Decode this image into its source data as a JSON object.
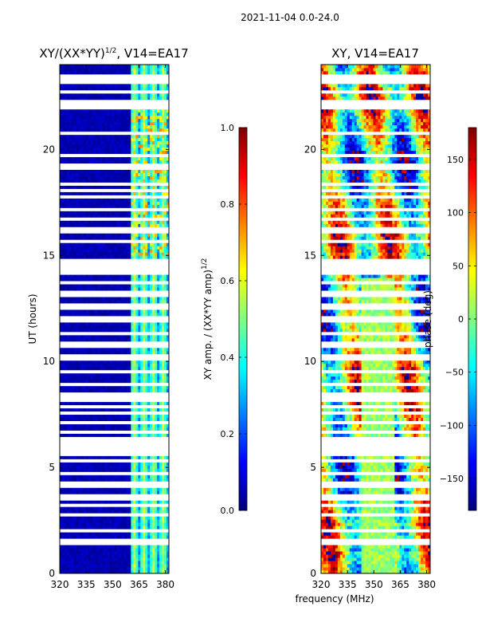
{
  "suptitle": "2021-11-04 0.0-24.0",
  "colors": {
    "jet": [
      "#00007f",
      "#0000ff",
      "#007fff",
      "#00ffff",
      "#7fff7f",
      "#ffff00",
      "#ff7f00",
      "#ff0000",
      "#7f0000"
    ],
    "gap": "#ffffff"
  },
  "chart_data": [
    {
      "type": "heatmap",
      "title": "XY/(XX*YY)",
      "title_sup": "1/2",
      "title_suffix": ", V14=EA17",
      "xlabel": "",
      "ylabel": "UT (hours)",
      "xlim": [
        320,
        382
      ],
      "ylim": [
        0,
        24
      ],
      "xticks": [
        "320",
        "335",
        "350",
        "365",
        "380"
      ],
      "xtick_values": [
        320,
        335,
        350,
        365,
        380
      ],
      "yticks": [
        "0",
        "5",
        "10",
        "15",
        "20"
      ],
      "ytick_values": [
        0,
        5,
        10,
        15,
        20
      ],
      "colorbar": {
        "label": "XY amp. / (XX*YY amp)",
        "label_sup": "1/2",
        "range": [
          0.0,
          1.0
        ],
        "ticks": [
          "0.0",
          "0.2",
          "0.4",
          "0.6",
          "0.8",
          "1.0"
        ],
        "tick_values": [
          0.0,
          0.2,
          0.4,
          0.6,
          0.8,
          1.0
        ]
      },
      "description_bands": [
        {
          "freq_range": [
            320,
            360
          ],
          "value": 0.02
        },
        {
          "freq_range": [
            360,
            382
          ],
          "value": 0.4
        }
      ]
    },
    {
      "type": "heatmap",
      "title": "XY, V14=EA17",
      "xlabel": "frequency (MHz)",
      "ylabel": "",
      "xlim": [
        320,
        382
      ],
      "ylim": [
        0,
        24
      ],
      "xticks": [
        "320",
        "335",
        "350",
        "365",
        "380"
      ],
      "xtick_values": [
        320,
        335,
        350,
        365,
        380
      ],
      "yticks": [
        "0",
        "5",
        "10",
        "15",
        "20"
      ],
      "ytick_values": [
        0,
        5,
        10,
        15,
        20
      ],
      "colorbar": {
        "label": "phase (deg)",
        "range": [
          -180,
          180
        ],
        "ticks": [
          "−150",
          "−100",
          "−50",
          "0",
          "50",
          "100",
          "150"
        ],
        "tick_values": [
          -150,
          -100,
          -50,
          0,
          50,
          100,
          150
        ]
      }
    }
  ],
  "gap_hours": [
    1.4,
    1.6,
    2.0,
    2.8,
    3.2,
    3.6,
    4.2,
    4.7,
    5.3,
    5.6,
    5.7,
    6.0,
    6.3,
    6.7,
    7.1,
    7.6,
    7.9,
    8.2,
    8.4,
    8.9,
    9.5,
    10.2,
    10.8,
    11.3,
    12.0,
    12.6,
    13.2,
    13.7,
    14.2,
    14.4,
    14.6,
    14.8,
    15.7,
    16.2,
    16.7,
    17.2,
    17.8,
    18.1,
    18.4,
    19.2,
    19.7,
    20.8,
    22.0,
    22.1,
    22.3,
    22.7,
    23.2,
    23.4
  ]
}
